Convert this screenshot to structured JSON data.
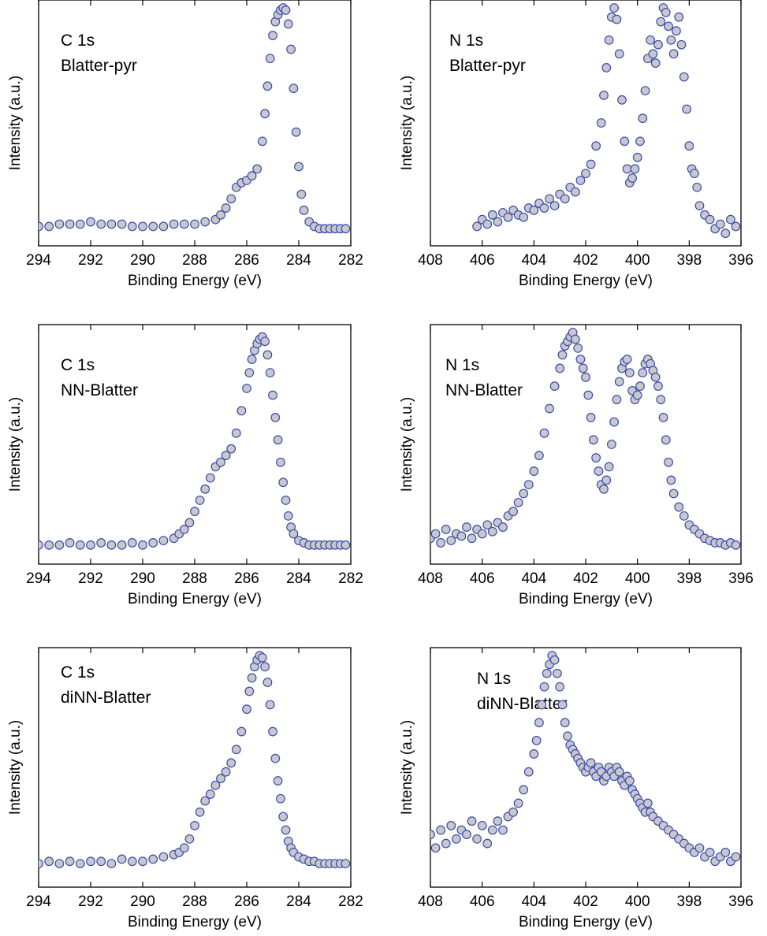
{
  "figure": {
    "marker_fill": "#c8c8cc",
    "marker_stroke": "#3a4bb0"
  },
  "chart_data": [
    {
      "id": "c1s-blatter-pyr",
      "type": "scatter",
      "label_lines": [
        "C 1s",
        "Blatter-pyr"
      ],
      "xlabel": "Binding Energy (eV)",
      "ylabel": "Intensity (a.u.)",
      "xlim": [
        294,
        282
      ],
      "xticks": [
        294,
        292,
        290,
        288,
        286,
        284,
        282
      ],
      "yticks_shown": false,
      "ylim": [
        0,
        1
      ],
      "grid": false,
      "series": [
        {
          "x": [
            294.0,
            293.6,
            293.2,
            292.8,
            292.4,
            292.0,
            291.6,
            291.2,
            290.8,
            290.4,
            290.0,
            289.6,
            289.2,
            288.8,
            288.4,
            288.0,
            287.6,
            287.2,
            287.0,
            286.8,
            286.6,
            286.4,
            286.2,
            286.0,
            285.8,
            285.6,
            285.4,
            285.3,
            285.2,
            285.1,
            285.0,
            284.9,
            284.8,
            284.7,
            284.6,
            284.5,
            284.4,
            284.3,
            284.2,
            284.1,
            284.0,
            283.9,
            283.8,
            283.6,
            283.4,
            283.2,
            283.0,
            282.8,
            282.6,
            282.4,
            282.2
          ],
          "y": [
            0.05,
            0.05,
            0.06,
            0.06,
            0.06,
            0.07,
            0.06,
            0.06,
            0.06,
            0.05,
            0.05,
            0.05,
            0.05,
            0.06,
            0.06,
            0.06,
            0.07,
            0.08,
            0.1,
            0.13,
            0.17,
            0.22,
            0.24,
            0.25,
            0.27,
            0.3,
            0.42,
            0.54,
            0.66,
            0.78,
            0.88,
            0.94,
            0.97,
            0.99,
            1.0,
            0.99,
            0.93,
            0.82,
            0.65,
            0.46,
            0.31,
            0.19,
            0.12,
            0.07,
            0.05,
            0.04,
            0.04,
            0.04,
            0.04,
            0.04,
            0.04
          ]
        }
      ]
    },
    {
      "id": "n1s-blatter-pyr",
      "type": "scatter",
      "label_lines": [
        "N 1s",
        "Blatter-pyr"
      ],
      "xlabel": "Binding Energy (eV)",
      "ylabel": "Intensity (a.u.)",
      "xlim": [
        408,
        396
      ],
      "xticks": [
        408,
        406,
        404,
        402,
        400,
        398,
        396
      ],
      "yticks_shown": false,
      "ylim": [
        0,
        1
      ],
      "grid": false,
      "series": [
        {
          "x": [
            406.2,
            406.0,
            405.8,
            405.6,
            405.4,
            405.2,
            405.0,
            404.8,
            404.6,
            404.4,
            404.2,
            404.0,
            403.8,
            403.6,
            403.4,
            403.2,
            403.0,
            402.8,
            402.6,
            402.4,
            402.2,
            402.0,
            401.8,
            401.6,
            401.4,
            401.3,
            401.2,
            401.1,
            401.0,
            400.9,
            400.8,
            400.7,
            400.6,
            400.5,
            400.4,
            400.3,
            400.2,
            400.1,
            400.0,
            399.9,
            399.8,
            399.7,
            399.6,
            399.5,
            399.4,
            399.3,
            399.2,
            399.1,
            399.0,
            398.9,
            398.8,
            398.7,
            398.6,
            398.5,
            398.4,
            398.3,
            398.2,
            398.1,
            398.0,
            397.9,
            397.8,
            397.7,
            397.6,
            397.4,
            397.2,
            397.0,
            396.8,
            396.6,
            396.4,
            396.2
          ],
          "y": [
            0.05,
            0.08,
            0.06,
            0.1,
            0.07,
            0.11,
            0.09,
            0.12,
            0.1,
            0.09,
            0.13,
            0.12,
            0.15,
            0.13,
            0.17,
            0.14,
            0.19,
            0.17,
            0.22,
            0.2,
            0.25,
            0.28,
            0.32,
            0.4,
            0.5,
            0.62,
            0.74,
            0.86,
            0.96,
            1.0,
            0.95,
            0.8,
            0.6,
            0.42,
            0.3,
            0.24,
            0.26,
            0.3,
            0.35,
            0.42,
            0.52,
            0.64,
            0.78,
            0.86,
            0.8,
            0.76,
            0.84,
            0.94,
            1.0,
            0.98,
            0.92,
            0.86,
            0.8,
            0.9,
            0.96,
            0.84,
            0.7,
            0.56,
            0.4,
            0.3,
            0.28,
            0.22,
            0.14,
            0.1,
            0.08,
            0.04,
            0.06,
            0.02,
            0.08,
            0.05
          ]
        }
      ]
    },
    {
      "id": "c1s-nn-blatter",
      "type": "scatter",
      "label_lines": [
        "C 1s",
        "NN-Blatter"
      ],
      "xlabel": "Binding Energy (eV)",
      "ylabel": "Intensity (a.u.)",
      "xlim": [
        294,
        282
      ],
      "xticks": [
        294,
        292,
        290,
        288,
        286,
        284,
        282
      ],
      "yticks_shown": false,
      "ylim": [
        0,
        1
      ],
      "grid": false,
      "series": [
        {
          "x": [
            294.0,
            293.6,
            293.2,
            292.8,
            292.4,
            292.0,
            291.6,
            291.2,
            290.8,
            290.4,
            290.0,
            289.6,
            289.2,
            288.8,
            288.6,
            288.4,
            288.2,
            288.0,
            287.8,
            287.6,
            287.4,
            287.2,
            287.0,
            286.8,
            286.6,
            286.4,
            286.2,
            286.0,
            285.9,
            285.8,
            285.7,
            285.6,
            285.5,
            285.4,
            285.3,
            285.2,
            285.1,
            285.0,
            284.9,
            284.8,
            284.7,
            284.6,
            284.5,
            284.4,
            284.3,
            284.2,
            284.0,
            283.8,
            283.6,
            283.4,
            283.2,
            283.0,
            282.8,
            282.6,
            282.4,
            282.2
          ],
          "y": [
            0.05,
            0.05,
            0.05,
            0.06,
            0.05,
            0.05,
            0.06,
            0.05,
            0.05,
            0.06,
            0.05,
            0.06,
            0.07,
            0.08,
            0.1,
            0.12,
            0.15,
            0.2,
            0.25,
            0.3,
            0.35,
            0.4,
            0.42,
            0.45,
            0.48,
            0.55,
            0.65,
            0.75,
            0.82,
            0.88,
            0.92,
            0.95,
            0.97,
            0.98,
            0.96,
            0.9,
            0.82,
            0.72,
            0.62,
            0.52,
            0.42,
            0.33,
            0.25,
            0.18,
            0.13,
            0.1,
            0.07,
            0.06,
            0.05,
            0.05,
            0.05,
            0.05,
            0.05,
            0.05,
            0.05,
            0.05
          ]
        }
      ]
    },
    {
      "id": "n1s-nn-blatter",
      "type": "scatter",
      "label_lines": [
        "N 1s",
        "NN-Blatter"
      ],
      "xlabel": "Binding Energy (eV)",
      "ylabel": "Intensity (a.u.)",
      "xlim": [
        408,
        396
      ],
      "xticks": [
        408,
        406,
        404,
        402,
        400,
        398,
        396
      ],
      "yticks_shown": false,
      "ylim": [
        0,
        1
      ],
      "grid": false,
      "series": [
        {
          "x": [
            408.0,
            407.8,
            407.6,
            407.4,
            407.2,
            407.0,
            406.8,
            406.6,
            406.4,
            406.2,
            406.0,
            405.8,
            405.6,
            405.4,
            405.2,
            405.0,
            404.8,
            404.6,
            404.4,
            404.2,
            404.0,
            403.8,
            403.6,
            403.4,
            403.2,
            403.0,
            402.9,
            402.8,
            402.7,
            402.6,
            402.5,
            402.4,
            402.3,
            402.2,
            402.1,
            402.0,
            401.9,
            401.8,
            401.7,
            401.6,
            401.5,
            401.4,
            401.3,
            401.2,
            401.1,
            401.0,
            400.9,
            400.8,
            400.7,
            400.6,
            400.5,
            400.4,
            400.3,
            400.2,
            400.1,
            400.0,
            399.9,
            399.8,
            399.7,
            399.6,
            399.5,
            399.4,
            399.3,
            399.2,
            399.1,
            399.0,
            398.9,
            398.8,
            398.7,
            398.6,
            398.4,
            398.2,
            398.0,
            397.8,
            397.6,
            397.4,
            397.2,
            397.0,
            396.8,
            396.6,
            396.4,
            396.2
          ],
          "y": [
            0.08,
            0.1,
            0.06,
            0.12,
            0.07,
            0.1,
            0.09,
            0.13,
            0.08,
            0.12,
            0.1,
            0.14,
            0.11,
            0.15,
            0.13,
            0.18,
            0.2,
            0.24,
            0.28,
            0.32,
            0.38,
            0.45,
            0.55,
            0.66,
            0.76,
            0.84,
            0.9,
            0.94,
            0.96,
            0.98,
            1.0,
            0.97,
            0.93,
            0.88,
            0.84,
            0.8,
            0.72,
            0.62,
            0.52,
            0.44,
            0.38,
            0.32,
            0.3,
            0.34,
            0.4,
            0.5,
            0.6,
            0.7,
            0.78,
            0.84,
            0.87,
            0.88,
            0.82,
            0.74,
            0.7,
            0.72,
            0.76,
            0.82,
            0.86,
            0.88,
            0.86,
            0.83,
            0.8,
            0.76,
            0.7,
            0.62,
            0.52,
            0.42,
            0.34,
            0.28,
            0.22,
            0.18,
            0.14,
            0.12,
            0.1,
            0.08,
            0.07,
            0.06,
            0.06,
            0.05,
            0.06,
            0.05
          ]
        }
      ]
    },
    {
      "id": "c1s-dinn-blatter",
      "type": "scatter",
      "label_lines": [
        "C 1s",
        "diNN-Blatter"
      ],
      "xlabel": "Binding Energy (eV)",
      "ylabel": "Intensity (a.u.)",
      "xlim": [
        294,
        282
      ],
      "xticks": [
        294,
        292,
        290,
        288,
        286,
        284,
        282
      ],
      "yticks_shown": false,
      "ylim": [
        0,
        1
      ],
      "grid": false,
      "series": [
        {
          "x": [
            294.0,
            293.6,
            293.2,
            292.8,
            292.4,
            292.0,
            291.6,
            291.2,
            290.8,
            290.4,
            290.0,
            289.6,
            289.2,
            288.8,
            288.6,
            288.4,
            288.2,
            288.0,
            287.8,
            287.6,
            287.4,
            287.2,
            287.0,
            286.8,
            286.6,
            286.4,
            286.2,
            286.0,
            285.9,
            285.8,
            285.7,
            285.6,
            285.5,
            285.4,
            285.3,
            285.2,
            285.1,
            285.0,
            284.9,
            284.8,
            284.7,
            284.6,
            284.5,
            284.4,
            284.3,
            284.2,
            284.0,
            283.8,
            283.6,
            283.4,
            283.2,
            283.0,
            282.8,
            282.6,
            282.4,
            282.2
          ],
          "y": [
            0.07,
            0.08,
            0.07,
            0.08,
            0.07,
            0.08,
            0.08,
            0.07,
            0.09,
            0.08,
            0.08,
            0.09,
            0.1,
            0.11,
            0.12,
            0.14,
            0.18,
            0.24,
            0.3,
            0.35,
            0.38,
            0.42,
            0.45,
            0.48,
            0.52,
            0.58,
            0.66,
            0.76,
            0.84,
            0.9,
            0.95,
            0.98,
            1.0,
            0.99,
            0.95,
            0.88,
            0.78,
            0.66,
            0.54,
            0.44,
            0.36,
            0.28,
            0.22,
            0.17,
            0.14,
            0.12,
            0.1,
            0.09,
            0.08,
            0.08,
            0.07,
            0.07,
            0.07,
            0.07,
            0.07,
            0.07
          ]
        }
      ]
    },
    {
      "id": "n1s-dinn-blatter",
      "type": "scatter",
      "label_lines": [
        "N 1s",
        "diNN-Blatter"
      ],
      "xlabel": "Binding Energy (eV)",
      "ylabel": "Intensity (a.u.)",
      "xlim": [
        408,
        396
      ],
      "xticks": [
        408,
        406,
        404,
        402,
        400,
        398,
        396
      ],
      "yticks_shown": false,
      "ylim": [
        0,
        1
      ],
      "grid": false,
      "series": [
        {
          "x": [
            408.0,
            407.8,
            407.6,
            407.4,
            407.2,
            407.0,
            406.8,
            406.6,
            406.4,
            406.2,
            406.0,
            405.8,
            405.6,
            405.4,
            405.2,
            405.0,
            404.8,
            404.6,
            404.4,
            404.2,
            404.0,
            403.9,
            403.8,
            403.7,
            403.6,
            403.5,
            403.4,
            403.3,
            403.2,
            403.1,
            403.0,
            402.9,
            402.8,
            402.7,
            402.6,
            402.5,
            402.4,
            402.3,
            402.2,
            402.1,
            402.0,
            401.9,
            401.8,
            401.7,
            401.6,
            401.5,
            401.4,
            401.3,
            401.2,
            401.1,
            401.0,
            400.9,
            400.8,
            400.7,
            400.6,
            400.5,
            400.4,
            400.3,
            400.2,
            400.1,
            400.0,
            399.9,
            399.8,
            399.7,
            399.6,
            399.5,
            399.4,
            399.2,
            399.0,
            398.8,
            398.6,
            398.4,
            398.2,
            398.0,
            397.8,
            397.6,
            397.4,
            397.2,
            397.0,
            396.8,
            396.6,
            396.4,
            396.2
          ],
          "y": [
            0.2,
            0.14,
            0.22,
            0.16,
            0.24,
            0.18,
            0.22,
            0.2,
            0.26,
            0.18,
            0.24,
            0.16,
            0.22,
            0.26,
            0.22,
            0.28,
            0.3,
            0.34,
            0.4,
            0.48,
            0.56,
            0.62,
            0.7,
            0.78,
            0.86,
            0.92,
            0.96,
            1.0,
            0.98,
            0.92,
            0.86,
            0.78,
            0.7,
            0.64,
            0.6,
            0.58,
            0.56,
            0.54,
            0.52,
            0.5,
            0.48,
            0.5,
            0.52,
            0.48,
            0.46,
            0.5,
            0.48,
            0.44,
            0.46,
            0.5,
            0.48,
            0.46,
            0.5,
            0.48,
            0.44,
            0.42,
            0.46,
            0.44,
            0.4,
            0.38,
            0.36,
            0.34,
            0.32,
            0.3,
            0.34,
            0.3,
            0.28,
            0.26,
            0.24,
            0.22,
            0.2,
            0.18,
            0.16,
            0.14,
            0.12,
            0.14,
            0.1,
            0.12,
            0.08,
            0.1,
            0.12,
            0.08,
            0.1
          ]
        }
      ]
    }
  ]
}
